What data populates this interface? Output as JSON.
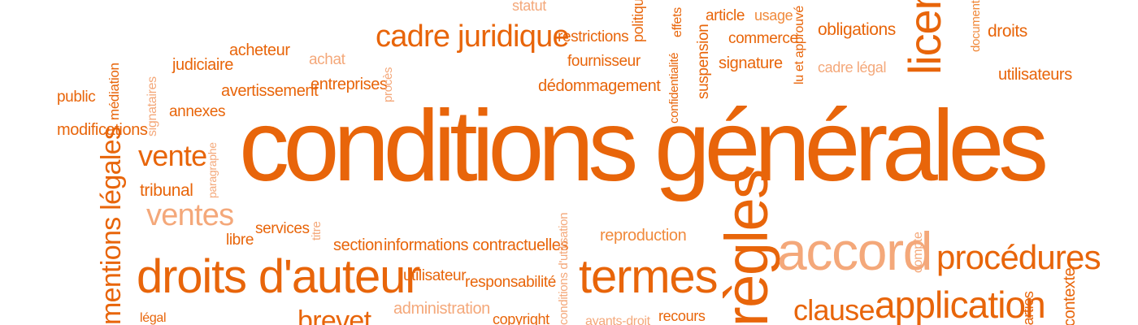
{
  "words": {
    "statut": "statut",
    "politique": "politique",
    "effets": "effets",
    "article": "article",
    "usage": "usage",
    "obligations": "obligations",
    "licence": "licence",
    "droits": "droits",
    "document": "document",
    "cadre_juridique": "cadre juridique",
    "restrictions": "restrictions",
    "commerce": "commerce",
    "lu_approuve": "lu et approuvé",
    "acheteur": "acheteur",
    "achat": "achat",
    "judiciaire": "judiciaire",
    "fournisseur": "fournisseur",
    "confidentialite": "confidentialité",
    "suspension": "suspension",
    "signature": "signature",
    "cadre_legal": "cadre légal",
    "utilisateurs": "utilisateurs",
    "public": "public",
    "mediation": "médiation",
    "signataires": "signataires",
    "avertissement": "avertissement",
    "entreprises": "entreprises",
    "proces": "procès",
    "dedommagement": "dédommagement",
    "annexes": "annexes",
    "modifications": "modifications",
    "conditions_generales": "conditions générales",
    "mentions_legales": "mentions légales",
    "vente": "vente",
    "paragraphe": "paragraphe",
    "tribunal": "tribunal",
    "ventes": "ventes",
    "services": "services",
    "libre": "libre",
    "titre": "titre",
    "reproduction": "reproduction",
    "compte": "compte",
    "section": "section",
    "informations_contractuelles": "informations contractuelles",
    "regles": "règles",
    "accord": "accord",
    "procedures": "procédures",
    "droits_auteur": "droits d'auteur",
    "utilisateur": "utilisateur",
    "responsabilite": "responsabilité",
    "conditions_utilisation": "conditions d'utilisation",
    "termes": "termes",
    "clause": "clause",
    "application": "application",
    "parties": "parties",
    "contexte": "contexte",
    "legal": "légal",
    "administration": "administration",
    "copyright": "copyright",
    "ayants_droit": "ayants-droit",
    "recours": "recours",
    "brevet": "brevet"
  },
  "colors": {
    "primary": "#e8650a",
    "secondary": "#f08a3c",
    "light": "#f4a87a"
  }
}
